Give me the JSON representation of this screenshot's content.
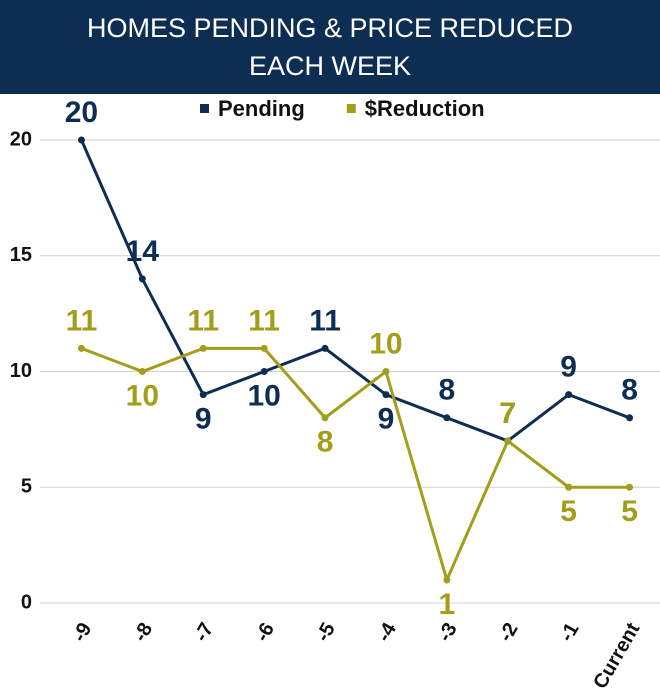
{
  "chart_data": {
    "type": "line",
    "title": "HOMES PENDING & PRICE REDUCED EACH WEEK",
    "categories": [
      "-9",
      "-8",
      "-7",
      "-6",
      "-5",
      "-4",
      "-3",
      "-2",
      "-1",
      "Current"
    ],
    "series": [
      {
        "name": "Pending",
        "color": "#0d2d52",
        "values": [
          20,
          14,
          9,
          10,
          11,
          9,
          8,
          7,
          9,
          8
        ]
      },
      {
        "name": "$Reduction",
        "color": "#a39e1a",
        "values": [
          11,
          10,
          11,
          11,
          8,
          10,
          1,
          7,
          5,
          5
        ]
      }
    ],
    "ylim": [
      0,
      20
    ],
    "yticks": [
      0,
      5,
      10,
      15,
      20
    ],
    "grid": true,
    "legend": "top"
  }
}
